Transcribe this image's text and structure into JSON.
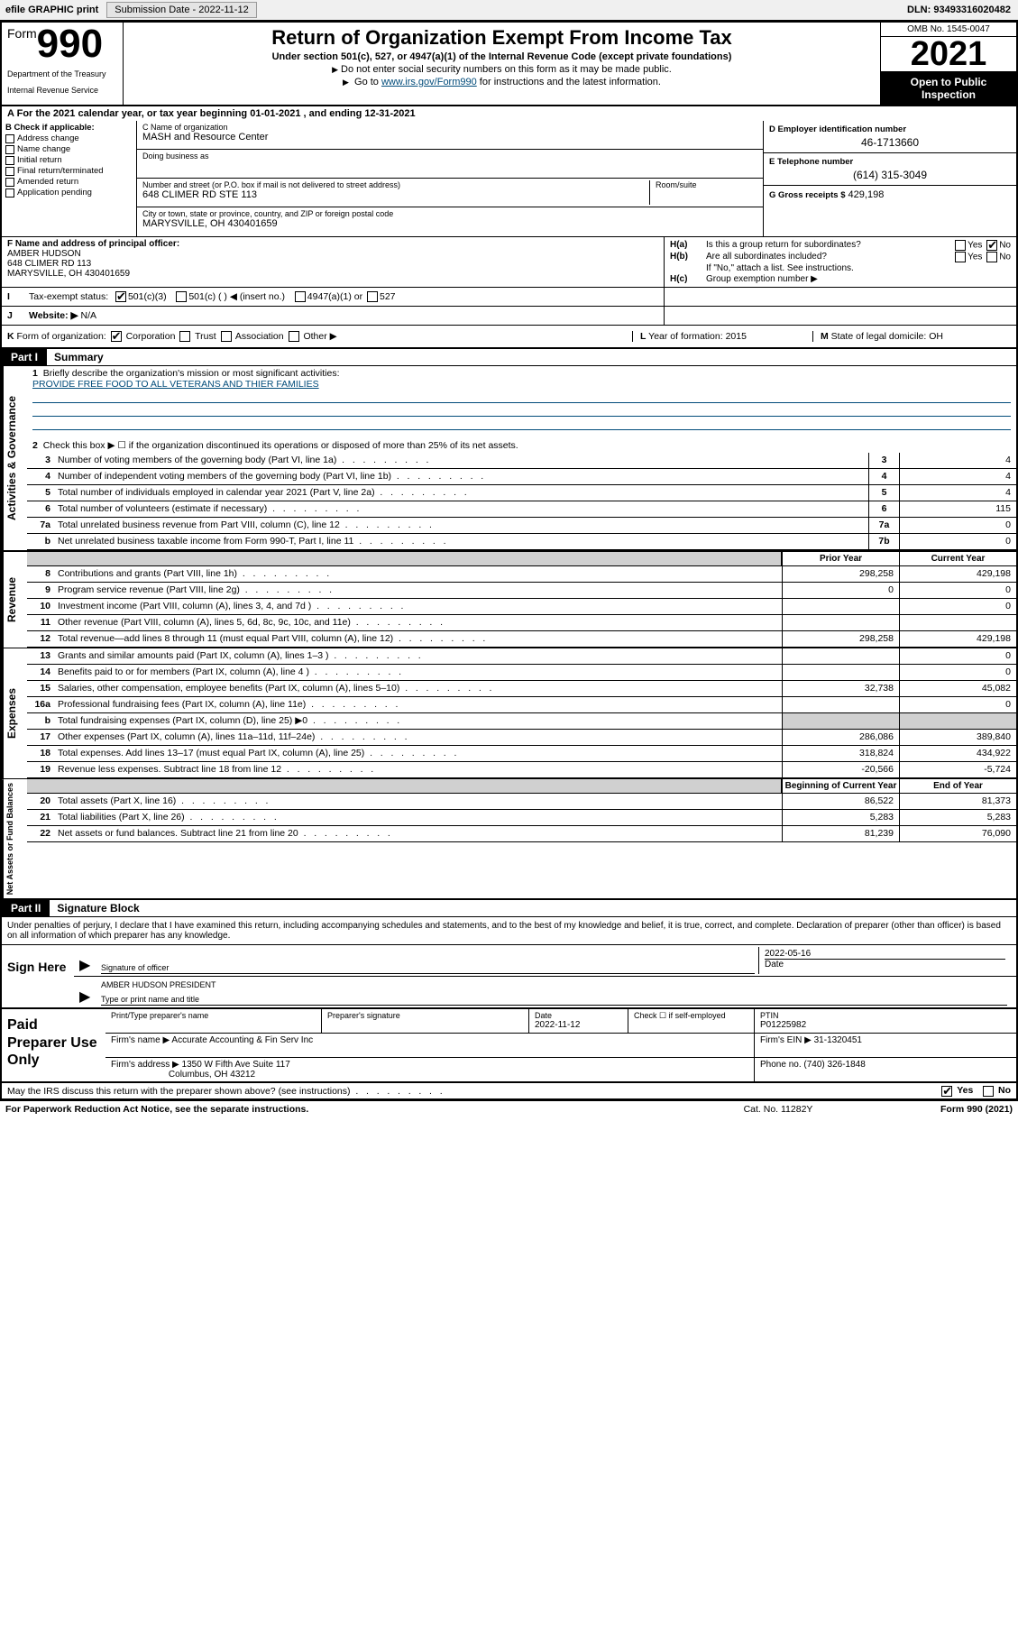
{
  "topbar": {
    "efile": "efile GRAPHIC print",
    "submission_label": "Submission Date - ",
    "submission_date": "2022-11-12",
    "dln_label": "DLN: ",
    "dln": "93493316020482"
  },
  "header": {
    "form_word": "Form",
    "form_num": "990",
    "title": "Return of Organization Exempt From Income Tax",
    "subtitle": "Under section 501(c), 527, or 4947(a)(1) of the Internal Revenue Code (except private foundations)",
    "note1": "Do not enter social security numbers on this form as it may be made public.",
    "note2_pre": "Go to ",
    "note2_link": "www.irs.gov/Form990",
    "note2_post": " for instructions and the latest information.",
    "dept1": "Department of the Treasury",
    "dept2": "Internal Revenue Service",
    "omb": "OMB No. 1545-0047",
    "year": "2021",
    "open": "Open to Public Inspection"
  },
  "line_a": "For the 2021 calendar year, or tax year beginning 01-01-2021   , and ending 12-31-2021",
  "box_b": {
    "title": "B Check if applicable:",
    "items": [
      "Address change",
      "Name change",
      "Initial return",
      "Final return/terminated",
      "Amended return",
      "Application pending"
    ]
  },
  "box_c": {
    "name_label": "C Name of organization",
    "name": "MASH and Resource Center",
    "dba_label": "Doing business as",
    "addr_label": "Number and street (or P.O. box if mail is not delivered to street address)",
    "addr": "648 CLIMER RD STE 113",
    "suite_label": "Room/suite",
    "city_label": "City or town, state or province, country, and ZIP or foreign postal code",
    "city": "MARYSVILLE, OH  430401659"
  },
  "box_d": {
    "label": "D Employer identification number",
    "val": "46-1713660"
  },
  "box_e": {
    "label": "E Telephone number",
    "val": "(614) 315-3049"
  },
  "box_g": {
    "label": "G Gross receipts $",
    "val": "429,198"
  },
  "box_f": {
    "label": "F Name and address of principal officer:",
    "name": "AMBER HUDSON",
    "addr1": "648 CLIMER RD 113",
    "addr2": "MARYSVILLE, OH  430401659"
  },
  "box_h": {
    "ha_label": "H(a)",
    "ha_text": "Is this a group return for subordinates?",
    "ha_yes": "Yes",
    "ha_no": "No",
    "hb_label": "H(b)",
    "hb_text": "Are all subordinates included?",
    "hb_yes": "Yes",
    "hb_no": "No",
    "hb_note": "If \"No,\" attach a list. See instructions.",
    "hc_label": "H(c)",
    "hc_text": "Group exemption number ▶"
  },
  "row_i": {
    "label": "I",
    "text": "Tax-exempt status:",
    "opt1": "501(c)(3)",
    "opt2": "501(c) (  ) ◀ (insert no.)",
    "opt3": "4947(a)(1) or",
    "opt4": "527"
  },
  "row_j": {
    "label": "J",
    "text": "Website: ▶",
    "val": "N/A"
  },
  "row_k": {
    "label": "K",
    "text": "Form of organization:",
    "o1": "Corporation",
    "o2": "Trust",
    "o3": "Association",
    "o4": "Other ▶",
    "l_label": "L",
    "l_text": "Year of formation: 2015",
    "m_label": "M",
    "m_text": "State of legal domicile: OH"
  },
  "part1": {
    "label": "Part I",
    "title": "Summary"
  },
  "summary": {
    "line1_num": "1",
    "line1": "Briefly describe the organization's mission or most significant activities:",
    "line1_val": "PROVIDE FREE FOOD TO ALL VETERANS AND THIER FAMILIES",
    "line2_num": "2",
    "line2": "Check this box ▶ ☐  if the organization discontinued its operations or disposed of more than 25% of its net assets.",
    "rows_a": [
      {
        "n": "3",
        "d": "Number of voting members of the governing body (Part VI, line 1a)",
        "b": "3",
        "v": "4"
      },
      {
        "n": "4",
        "d": "Number of independent voting members of the governing body (Part VI, line 1b)",
        "b": "4",
        "v": "4"
      },
      {
        "n": "5",
        "d": "Total number of individuals employed in calendar year 2021 (Part V, line 2a)",
        "b": "5",
        "v": "4"
      },
      {
        "n": "6",
        "d": "Total number of volunteers (estimate if necessary)",
        "b": "6",
        "v": "115"
      },
      {
        "n": "7a",
        "d": "Total unrelated business revenue from Part VIII, column (C), line 12",
        "b": "7a",
        "v": "0"
      },
      {
        "n": "b",
        "d": "Net unrelated business taxable income from Form 990-T, Part I, line 11",
        "b": "7b",
        "v": "0"
      }
    ]
  },
  "revenue": {
    "hdr1": "Prior Year",
    "hdr2": "Current Year",
    "rows": [
      {
        "n": "8",
        "d": "Contributions and grants (Part VIII, line 1h)",
        "p": "298,258",
        "c": "429,198"
      },
      {
        "n": "9",
        "d": "Program service revenue (Part VIII, line 2g)",
        "p": "0",
        "c": "0"
      },
      {
        "n": "10",
        "d": "Investment income (Part VIII, column (A), lines 3, 4, and 7d )",
        "p": "",
        "c": "0"
      },
      {
        "n": "11",
        "d": "Other revenue (Part VIII, column (A), lines 5, 6d, 8c, 9c, 10c, and 11e)",
        "p": "",
        "c": ""
      },
      {
        "n": "12",
        "d": "Total revenue—add lines 8 through 11 (must equal Part VIII, column (A), line 12)",
        "p": "298,258",
        "c": "429,198"
      }
    ]
  },
  "expenses": {
    "rows": [
      {
        "n": "13",
        "d": "Grants and similar amounts paid (Part IX, column (A), lines 1–3 )",
        "p": "",
        "c": "0"
      },
      {
        "n": "14",
        "d": "Benefits paid to or for members (Part IX, column (A), line 4 )",
        "p": "",
        "c": "0"
      },
      {
        "n": "15",
        "d": "Salaries, other compensation, employee benefits (Part IX, column (A), lines 5–10)",
        "p": "32,738",
        "c": "45,082"
      },
      {
        "n": "16a",
        "d": "Professional fundraising fees (Part IX, column (A), line 11e)",
        "p": "",
        "c": "0"
      },
      {
        "n": "b",
        "d": "Total fundraising expenses (Part IX, column (D), line 25) ▶0",
        "p": "gray",
        "c": "gray"
      },
      {
        "n": "17",
        "d": "Other expenses (Part IX, column (A), lines 11a–11d, 11f–24e)",
        "p": "286,086",
        "c": "389,840"
      },
      {
        "n": "18",
        "d": "Total expenses. Add lines 13–17 (must equal Part IX, column (A), line 25)",
        "p": "318,824",
        "c": "434,922"
      },
      {
        "n": "19",
        "d": "Revenue less expenses. Subtract line 18 from line 12",
        "p": "-20,566",
        "c": "-5,724"
      }
    ]
  },
  "netassets": {
    "hdr1": "Beginning of Current Year",
    "hdr2": "End of Year",
    "rows": [
      {
        "n": "20",
        "d": "Total assets (Part X, line 16)",
        "p": "86,522",
        "c": "81,373"
      },
      {
        "n": "21",
        "d": "Total liabilities (Part X, line 26)",
        "p": "5,283",
        "c": "5,283"
      },
      {
        "n": "22",
        "d": "Net assets or fund balances. Subtract line 21 from line 20",
        "p": "81,239",
        "c": "76,090"
      }
    ]
  },
  "vert_labels": {
    "gov": "Activities & Governance",
    "rev": "Revenue",
    "exp": "Expenses",
    "net": "Net Assets or Fund Balances"
  },
  "part2": {
    "label": "Part II",
    "title": "Signature Block"
  },
  "sig": {
    "text": "Under penalties of perjury, I declare that I have examined this return, including accompanying schedules and statements, and to the best of my knowledge and belief, it is true, correct, and complete. Declaration of preparer (other than officer) is based on all information of which preparer has any knowledge.",
    "sign_here": "Sign Here",
    "sig_officer": "Signature of officer",
    "date_label": "Date",
    "date_val": "2022-05-16",
    "name": "AMBER HUDSON  PRESIDENT",
    "name_label": "Type or print name and title"
  },
  "paid": {
    "title": "Paid Preparer Use Only",
    "h1": "Print/Type preparer's name",
    "h2": "Preparer's signature",
    "h3": "Date",
    "h3v": "2022-11-12",
    "h4": "Check ☐ if self-employed",
    "h5": "PTIN",
    "h5v": "P01225982",
    "firm_l": "Firm's name   ▶",
    "firm": "Accurate Accounting & Fin Serv Inc",
    "ein_l": "Firm's EIN ▶",
    "ein": "31-1320451",
    "addr_l": "Firm's address ▶",
    "addr1": "1350 W Fifth Ave Suite 117",
    "addr2": "Columbus, OH  43212",
    "phone_l": "Phone no.",
    "phone": "(740) 326-1848"
  },
  "discuss": {
    "q": "May the IRS discuss this return with the preparer shown above? (see instructions)",
    "yes": "Yes",
    "no": "No"
  },
  "footer": {
    "l": "For Paperwork Reduction Act Notice, see the separate instructions.",
    "m": "Cat. No. 11282Y",
    "r": "Form 990 (2021)"
  }
}
